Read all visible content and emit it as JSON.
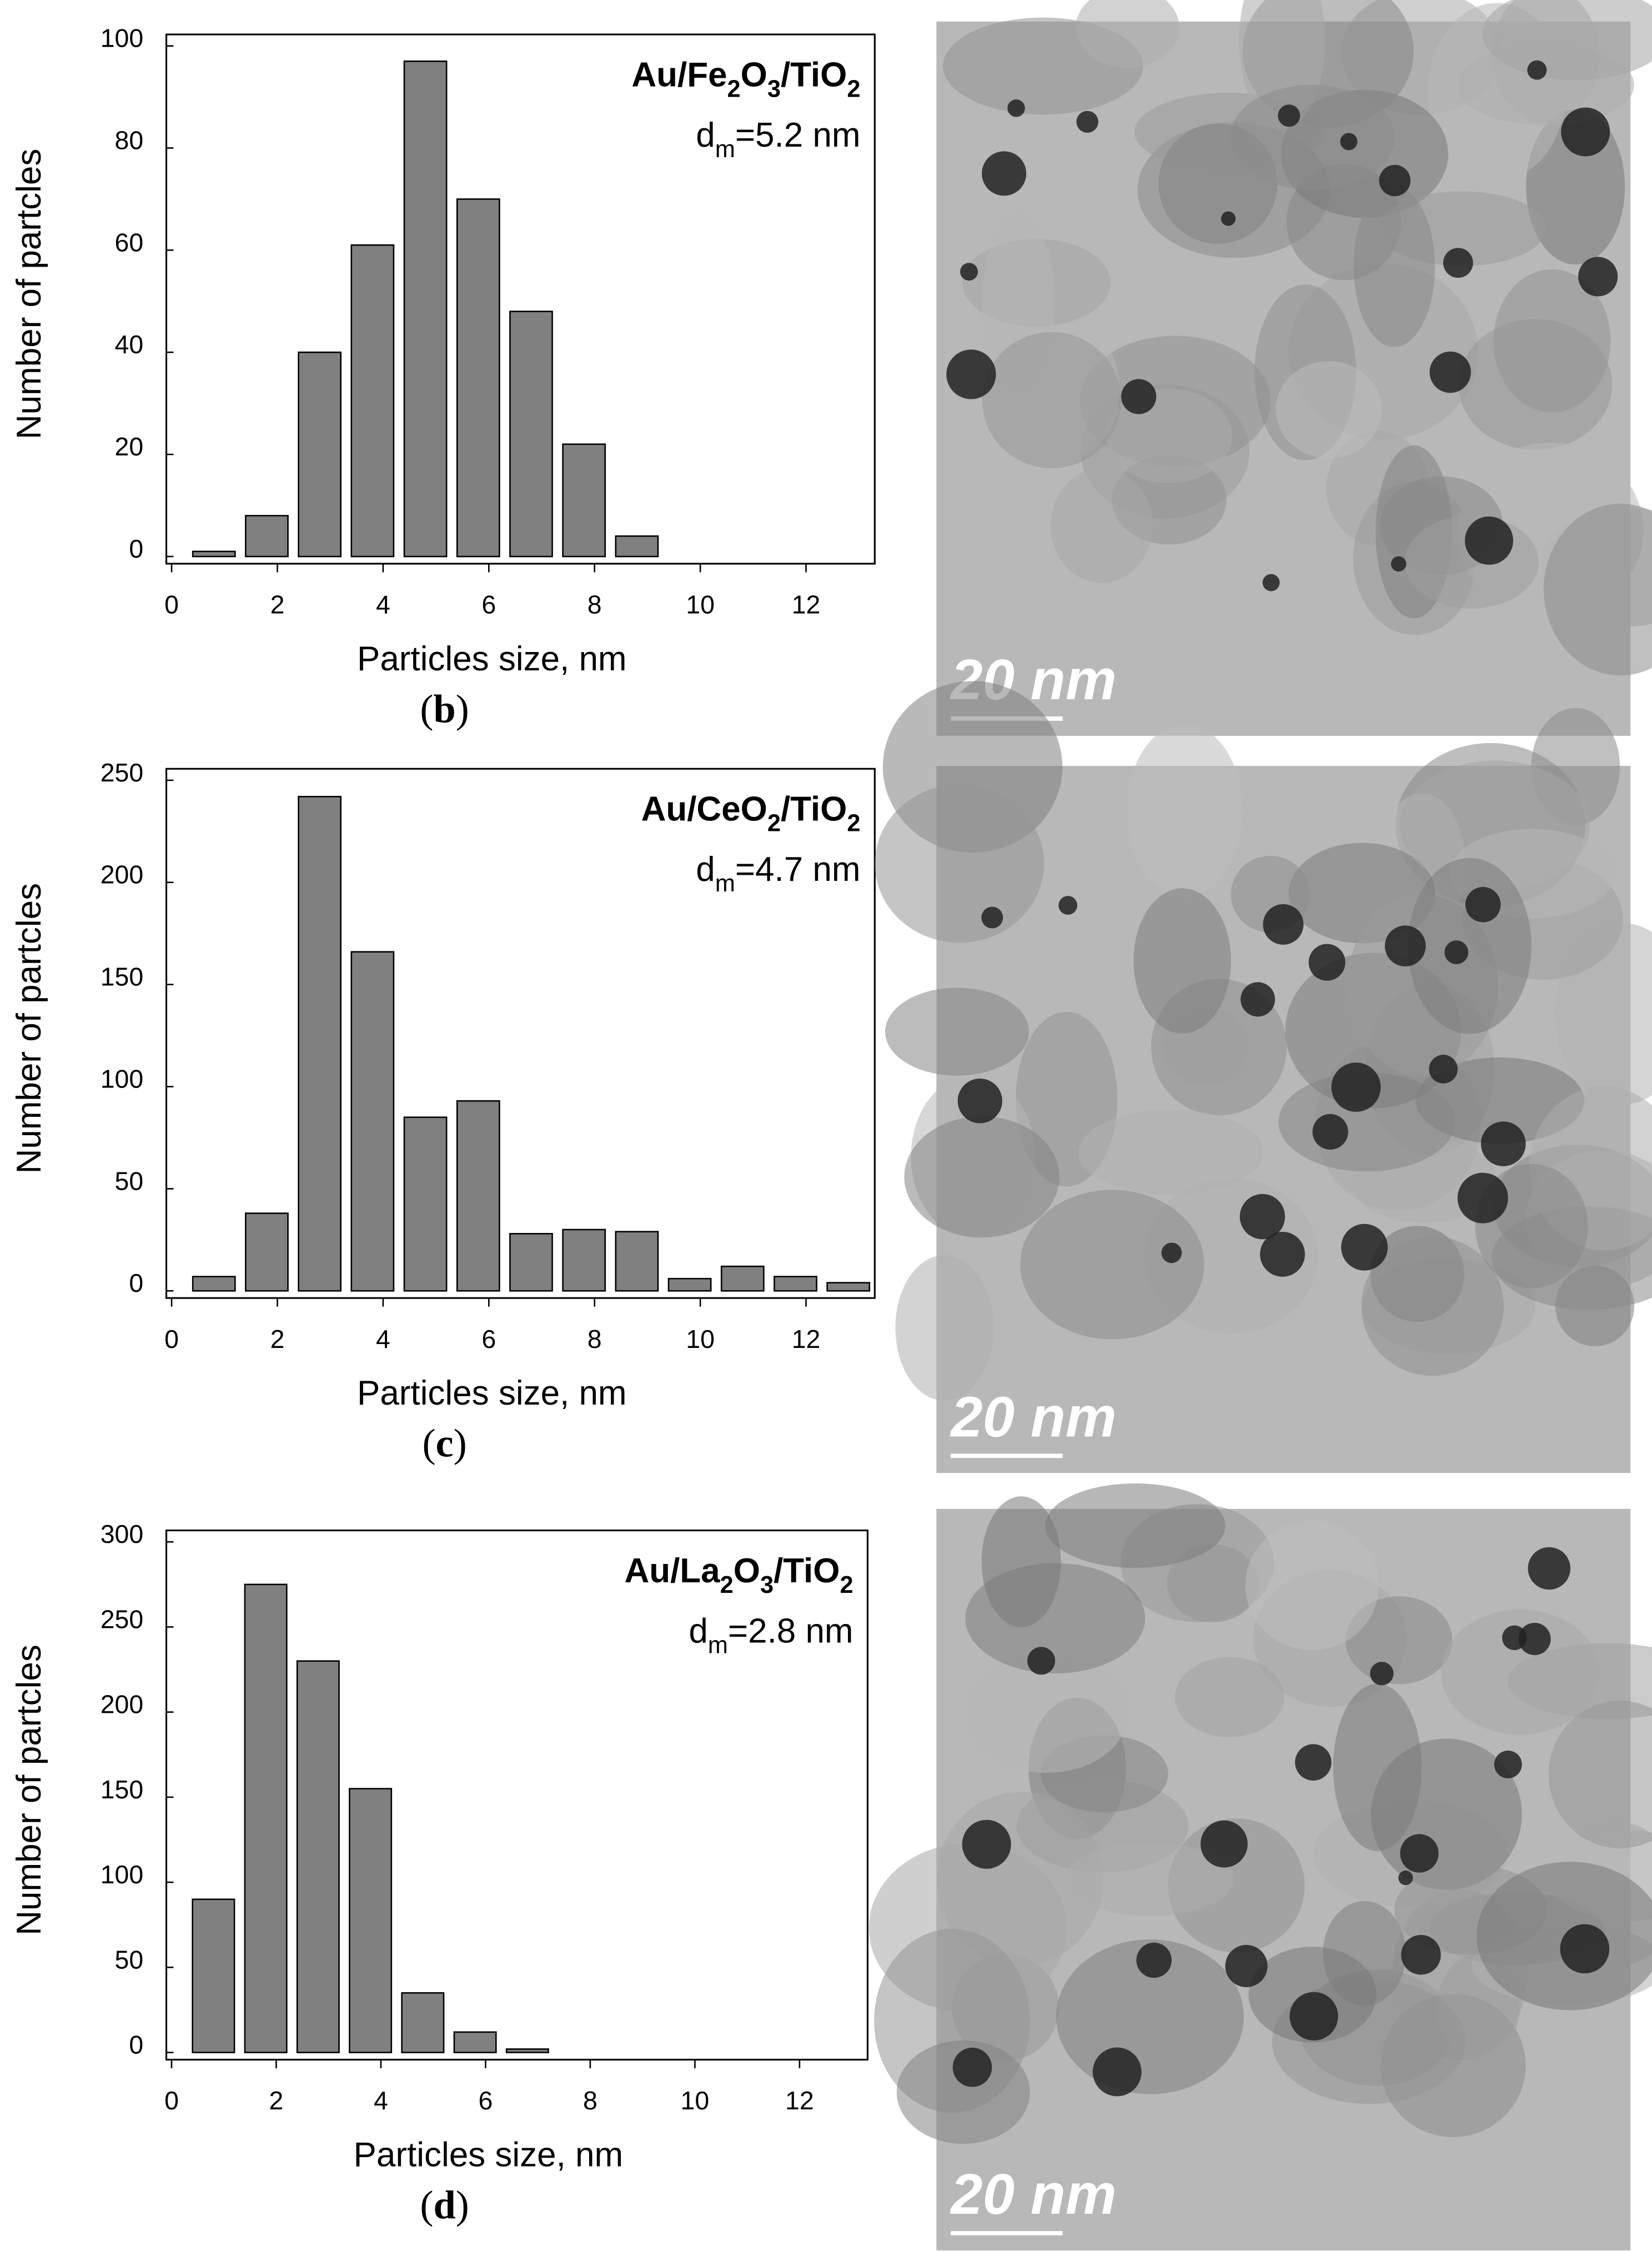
{
  "chart_data": [
    {
      "type": "bar",
      "panel_label": "(b)",
      "annotation": [
        "Au/Fe2O3/TiO2",
        "dm=5.2 nm"
      ],
      "xlabel": "Particles size, nm",
      "ylabel": "Number of partcles",
      "color": "#808080",
      "x": [
        0.8,
        1.8,
        2.8,
        3.8,
        4.8,
        5.8,
        6.8,
        7.8,
        8.8
      ],
      "values": [
        1,
        8,
        40,
        61,
        97,
        70,
        48,
        22,
        4
      ],
      "xlim": [
        -0.1,
        13.3
      ],
      "xticks": [
        0,
        2,
        4,
        6,
        8,
        10,
        12
      ],
      "ylim": [
        0,
        100
      ],
      "yticks": [
        0,
        20,
        40,
        60,
        80,
        100
      ]
    },
    {
      "type": "bar",
      "panel_label": "(c)",
      "annotation": [
        "Au/CeO2/TiO2",
        "dm=4.7 nm"
      ],
      "xlabel": "Particles size, nm",
      "ylabel": "Number of partcles",
      "color": "#808080",
      "x": [
        0.8,
        1.8,
        2.8,
        3.8,
        4.8,
        5.8,
        6.8,
        7.8,
        8.8,
        9.8,
        10.8,
        11.8,
        12.8
      ],
      "values": [
        7,
        38,
        242,
        166,
        85,
        93,
        28,
        30,
        29,
        6,
        12,
        7,
        4
      ],
      "xlim": [
        -0.1,
        13.3
      ],
      "xticks": [
        0,
        2,
        4,
        6,
        8,
        10,
        12
      ],
      "ylim": [
        0,
        250
      ],
      "yticks": [
        0,
        50,
        100,
        150,
        200,
        250
      ]
    },
    {
      "type": "bar",
      "panel_label": "(d)",
      "annotation": [
        "Au/La2O3/TiO2",
        "dm=2.8 nm"
      ],
      "xlabel": "Particles size, nm",
      "ylabel": "Number of partcles",
      "color": "#808080",
      "x": [
        0.8,
        1.8,
        2.8,
        3.8,
        4.8,
        5.8,
        6.8
      ],
      "values": [
        90,
        275,
        230,
        155,
        35,
        12,
        2
      ],
      "xlim": [
        -0.1,
        13.3
      ],
      "xticks": [
        0,
        2,
        4,
        6,
        8,
        10,
        12
      ],
      "ylim": [
        0,
        300
      ],
      "yticks": [
        0,
        50,
        100,
        150,
        200,
        250,
        300
      ]
    }
  ],
  "images": [
    {
      "scale_label": "20 nm"
    },
    {
      "scale_label": "20 nm"
    },
    {
      "scale_label": "20 nm"
    }
  ]
}
